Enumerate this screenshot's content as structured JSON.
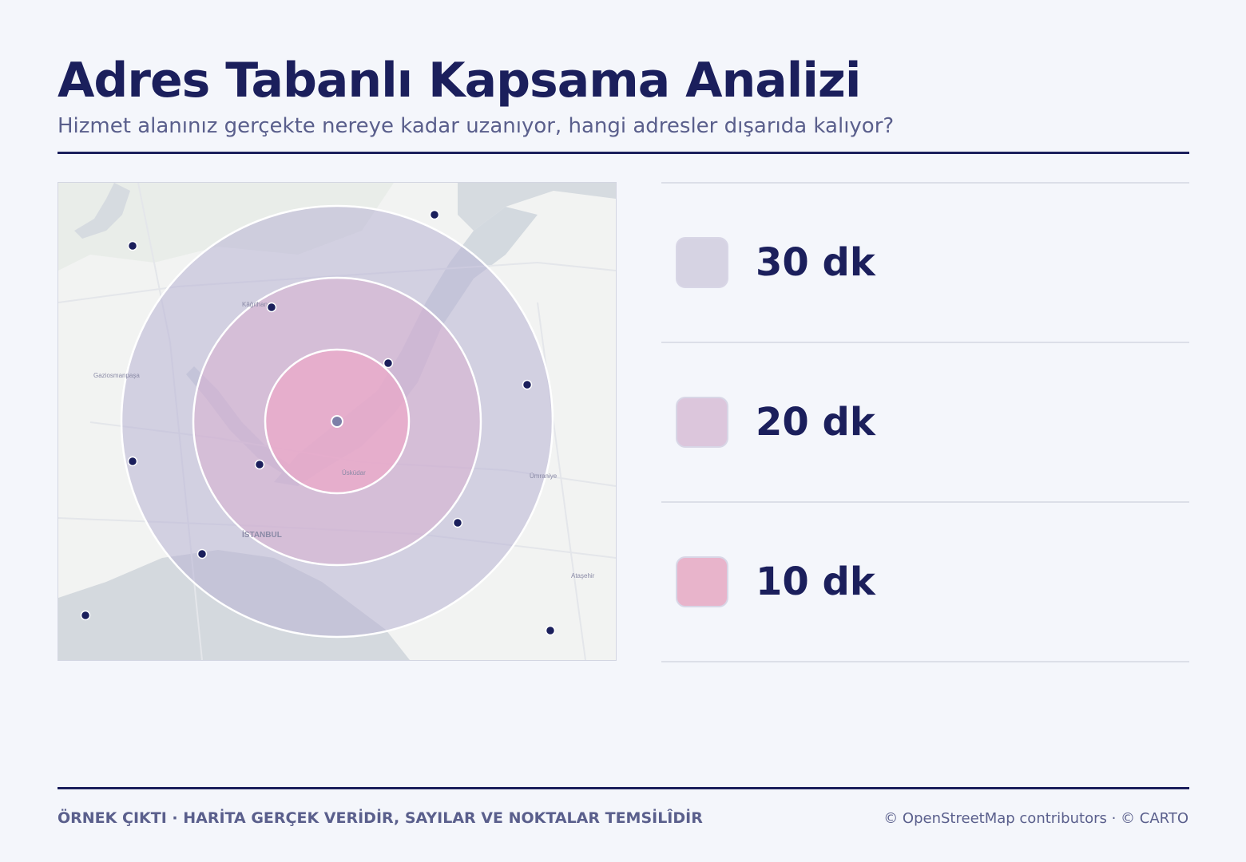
{
  "header": {
    "title": "Adres Tabanlı Kapsama Analizi",
    "subtitle": "Hizmet alanınız gerçekte nereye kadar uzanıyor, hangi adresler dışarıda kalıyor?"
  },
  "map": {
    "place_labels": [
      "Kâğıthane",
      "Gaziosmanpaşa",
      "Üsküdar",
      "Ümraniye",
      "İSTANBUL",
      "Ataşehir"
    ],
    "center_marker": "service-center",
    "address_points_count": 12
  },
  "legend": {
    "items": [
      {
        "label": "30 dk",
        "color": "#d6d3e3"
      },
      {
        "label": "20 dk",
        "color": "#dcc6dc"
      },
      {
        "label": "10 dk",
        "color": "#e8b4cb"
      }
    ]
  },
  "colors": {
    "navy": "#1b1f5c",
    "muted": "#5a5f8c",
    "ring_30": "#b8b3d3",
    "ring_20": "#d7afcf",
    "ring_10": "#f1a3c4"
  },
  "footer": {
    "note": "ÖRNEK ÇIKTI · HARİTA GERÇEK VERİDİR, SAYILAR VE NOKTALAR TEMSİLÎDİR",
    "attribution": "© OpenStreetMap contributors · © CARTO"
  }
}
